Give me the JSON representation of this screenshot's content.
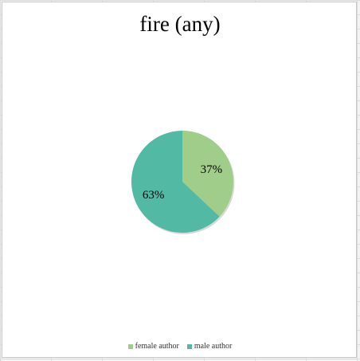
{
  "chart_data": {
    "type": "pie",
    "title": "fire (any)",
    "categories": [
      "female author",
      "male author"
    ],
    "values": [
      37,
      63
    ],
    "labels": [
      "37%",
      "63%"
    ],
    "colors": [
      "#a0cd8a",
      "#52b9a4"
    ],
    "legend_position": "bottom"
  }
}
